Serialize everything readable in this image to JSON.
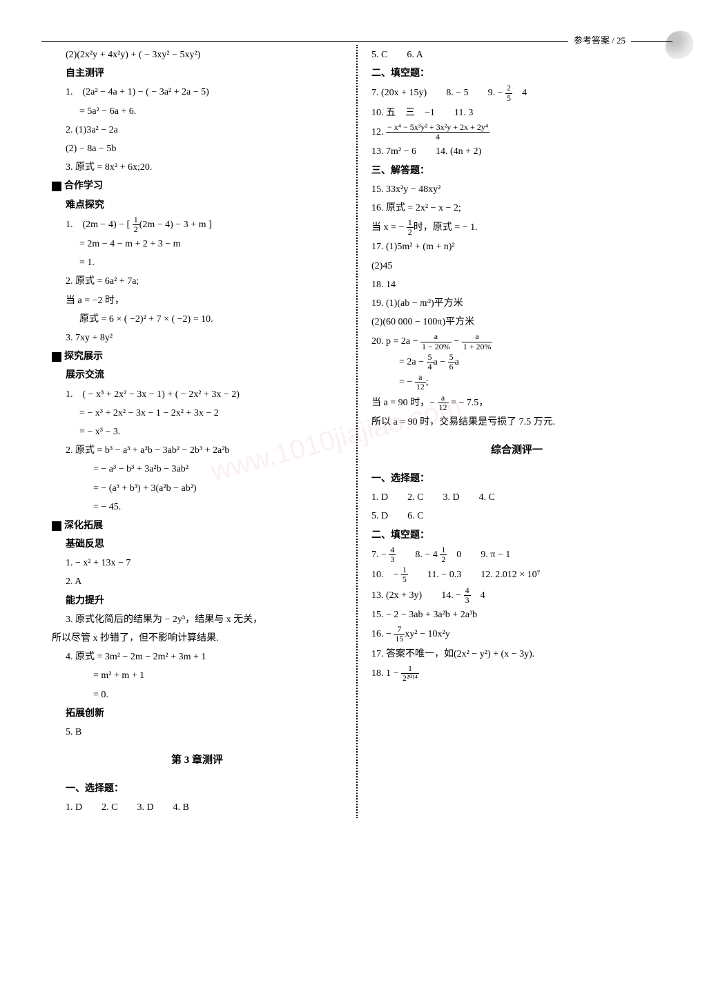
{
  "header": {
    "label": "参考答案  /  25"
  },
  "left": {
    "l1": "(2)(2x²y + 4x²y) + ( − 3xy² − 5xy²)",
    "zzcp": "自主测评",
    "l2": "1.　(2a² − 4a + 1) − ( − 3a² + 2a − 5)",
    "l3": "= 5a² − 6a + 6.",
    "l4": "2. (1)3a² − 2a",
    "l5": "(2) − 8a − 5b",
    "l6": "3. 原式 = 8x² + 6x;20.",
    "hzxx": "合作学习",
    "ndtj": "难点探究",
    "l7a": "1.　(2m − 4) − ",
    "l7b": "(2m − 4) − 3 + m",
    "l8": "= 2m − 4 − m + 2 + 3 − m",
    "l9": "= 1.",
    "l10": "2. 原式 = 6a² + 7a;",
    "l11": "当 a = −2 时，",
    "l12": "原式 = 6 × ( −2)² + 7 × ( −2) = 10.",
    "l13": "3. 7xy + 8y²",
    "tjzs": "探究展示",
    "zsjl": "展示交流",
    "l14": "1.　( − x³ + 2x² − 3x − 1) + ( − 2x² + 3x − 2)",
    "l15": "= − x³ + 2x² − 3x − 1 − 2x² + 3x − 2",
    "l16": "= − x³ − 3.",
    "l17": "2. 原式 = b³ − a³ + a²b − 3ab² − 2b³ + 2a²b",
    "l18": "= − a³ − b³ + 3a²b − 3ab²",
    "l19": "= − (a³ + b³) + 3(a²b − ab²)",
    "l20": "= − 45.",
    "shtz": "深化拓展",
    "jcfs": "基础反思",
    "l21": "1. − x² + 13x − 7",
    "l22": "2. A",
    "nlts": "能力提升",
    "l23": "3. 原式化简后的结果为 − 2y³，结果与 x 无关，",
    "l24": "所以尽管 x 抄错了，但不影响计算结果.",
    "l25": "4. 原式 = 3m² − 2m − 2m² + 3m + 1",
    "l26": "= m² + m + 1",
    "l27": "= 0.",
    "tzcx": "拓展创新",
    "l28": "5. B",
    "ch3": "第 3 章测评",
    "yxzt": "一、选择题：",
    "l29": "1. D　　2. C　　3. D　　4. B"
  },
  "right": {
    "r1": "5. C　　6. A",
    "etkt": "二、填空题：",
    "r2a": "7. (20x + 15y)　　8. − 5　　9. − ",
    "r2b": "　4",
    "r3": "10. 五　三　−1　　11. 3",
    "r4a": "12. ",
    "r4num": "− x⁴ − 5x³y² + 3x²y + 2x + 2y⁴",
    "r4den": "4",
    "r5": "13. 7m² − 6　　14. (4n + 2)",
    "sjdt": "三、解答题：",
    "r6": "15. 33x²y − 48xy²",
    "r7": "16. 原式 = 2x² − x − 2;",
    "r8a": "当 x = − ",
    "r8b": "时，原式 = − 1.",
    "r9": "17. (1)5m² + (m + n)²",
    "r10": "(2)45",
    "r11": "18. 14",
    "r12": "19. (1)(ab − πr²)平方米",
    "r13": "(2)(60 000 − 100π)平方米",
    "r14a": "20. p = 2a − ",
    "r14b": " − ",
    "r15a": "= 2a − ",
    "r15b": "a − ",
    "r15c": "a",
    "r16a": "= − ",
    "r16b": ";",
    "r17a": "当 a = 90 时，− ",
    "r17b": " = − 7.5，",
    "r18": "所以 a = 90 时，交易结果是亏损了 7.5 万元.",
    "zhcp": "综合测评一",
    "yxzt2": "一、选择题：",
    "r19": "1. D　　2. C　　3. D　　4. C",
    "r20": "5. D　　6. C",
    "etkt2": "二、填空题：",
    "r21a": "7. − ",
    "r21b": "　　8. − 4 ",
    "r21c": "　0　　9. π − 1",
    "r22a": "10.　− ",
    "r22b": "　　11. − 0.3　　12. 2.012 × 10⁷",
    "r23a": "13. (2x + 3y)　　14. − ",
    "r23b": "　4",
    "r24": "15. − 2 − 3ab + 3a²b + 2a³b",
    "r25a": "16. − ",
    "r25b": "xy² − 10x²y",
    "r26": "17. 答案不唯一，如(2x² − y²) + (x − 3y).",
    "r27a": "18. 1 − ",
    "r27num": "1",
    "r27den": "2²⁰¹⁴"
  }
}
